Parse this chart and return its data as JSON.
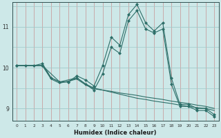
{
  "title": "",
  "xlabel": "Humidex (Indice chaleur)",
  "ylabel": "",
  "bg_color": "#cde8e8",
  "line_color": "#2d6e68",
  "grid_color_x": "#c8a0a0",
  "grid_color_y_minor": "#a0c8c8",
  "xlim": [
    -0.5,
    23.5
  ],
  "ylim": [
    8.7,
    11.6
  ],
  "yticks": [
    9,
    10,
    11
  ],
  "xticks": [
    0,
    1,
    2,
    3,
    4,
    5,
    6,
    7,
    8,
    9,
    10,
    11,
    12,
    13,
    14,
    15,
    16,
    17,
    18,
    19,
    20,
    21,
    22,
    23
  ],
  "series": [
    {
      "x": [
        0,
        1,
        2,
        3,
        4,
        5,
        6,
        7,
        8,
        9,
        10,
        11,
        12,
        13,
        14,
        15,
        16,
        17,
        18,
        19,
        20,
        21,
        22,
        23
      ],
      "y": [
        10.05,
        10.05,
        10.05,
        10.1,
        9.75,
        9.65,
        9.65,
        9.8,
        9.7,
        9.55,
        10.05,
        10.75,
        10.55,
        11.3,
        11.55,
        11.1,
        10.9,
        11.1,
        9.75,
        9.1,
        9.1,
        9.0,
        9.0,
        8.85
      ],
      "has_markers": true
    },
    {
      "x": [
        0,
        1,
        2,
        3,
        4,
        5,
        6,
        7,
        8,
        9,
        10,
        11,
        12,
        13,
        14,
        15,
        16,
        17,
        18,
        19,
        20,
        21,
        22,
        23
      ],
      "y": [
        10.05,
        10.05,
        10.05,
        10.05,
        9.72,
        9.62,
        9.67,
        9.72,
        9.58,
        9.48,
        9.45,
        9.42,
        9.38,
        9.35,
        9.32,
        9.28,
        9.25,
        9.22,
        9.18,
        9.15,
        9.12,
        9.08,
        9.05,
        9.0
      ],
      "has_markers": false
    },
    {
      "x": [
        0,
        1,
        2,
        3,
        4,
        5,
        6,
        7,
        8,
        9,
        10,
        11,
        12,
        13,
        14,
        15,
        16,
        17,
        18,
        19,
        20,
        21,
        22,
        23
      ],
      "y": [
        10.05,
        10.05,
        10.05,
        10.05,
        9.75,
        9.65,
        9.7,
        9.75,
        9.6,
        9.5,
        9.45,
        9.4,
        9.35,
        9.3,
        9.25,
        9.22,
        9.18,
        9.15,
        9.12,
        9.08,
        9.05,
        9.02,
        9.0,
        8.95
      ],
      "has_markers": false
    },
    {
      "x": [
        0,
        3,
        5,
        6,
        7,
        8,
        9,
        10,
        11,
        12,
        13,
        14,
        15,
        16,
        17,
        18,
        19,
        20,
        21,
        22,
        23
      ],
      "y": [
        10.05,
        10.05,
        9.65,
        9.65,
        9.75,
        9.6,
        9.45,
        9.85,
        10.5,
        10.35,
        11.15,
        11.4,
        10.95,
        10.85,
        10.95,
        9.6,
        9.05,
        9.05,
        8.95,
        8.95,
        8.8
      ],
      "has_markers": true
    }
  ]
}
